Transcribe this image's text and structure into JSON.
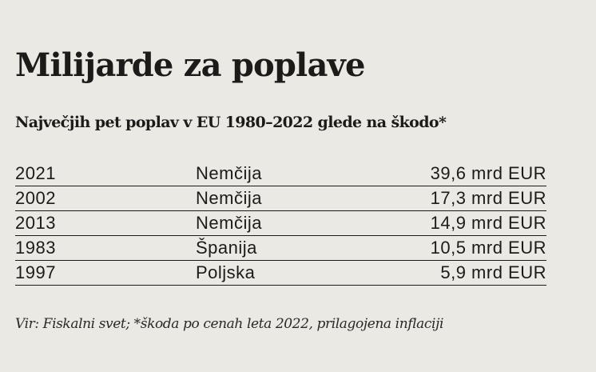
{
  "chart_data": {
    "type": "table",
    "title": "Milijarde za poplave",
    "subtitle": "Največjih pet poplav v EU 1980–2022 glede na škodo*",
    "columns": [
      "year",
      "country",
      "damage"
    ],
    "rows": [
      {
        "year": "2021",
        "country": "Nemčija",
        "damage": "39,6 mrd EUR",
        "value": 39.6
      },
      {
        "year": "2002",
        "country": "Nemčija",
        "damage": "17,3 mrd EUR",
        "value": 17.3
      },
      {
        "year": "2013",
        "country": "Nemčija",
        "damage": "14,9 mrd EUR",
        "value": 14.9
      },
      {
        "year": "1983",
        "country": "Španija",
        "damage": "10,5 mrd EUR",
        "value": 10.5
      },
      {
        "year": "1997",
        "country": "Poljska",
        "damage": "5,9 mrd EUR",
        "value": 5.9
      }
    ],
    "unit": "mrd EUR",
    "source": "Vir: Fiskalni svet; *škoda po cenah leta 2022, prilagojena inflaciji"
  },
  "colors": {
    "background": "#ebe9e4",
    "text": "#1c1b1a"
  }
}
